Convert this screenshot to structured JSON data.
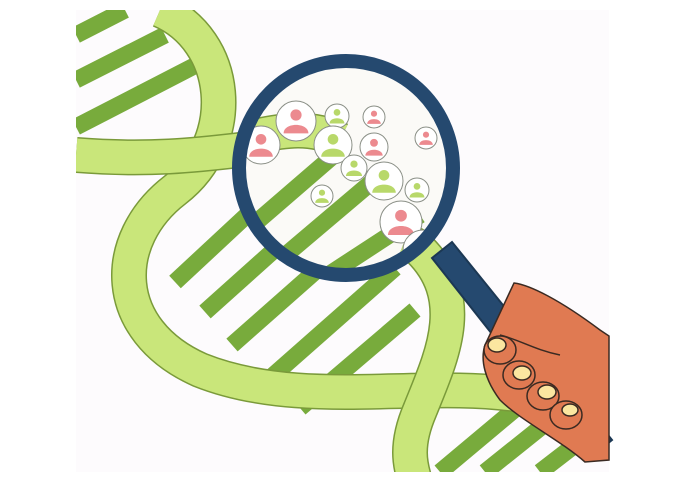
{
  "illustration": {
    "subject": "dna-helix-with-magnifying-glass",
    "colors": {
      "background": "#ffffff",
      "panel": "#fdfbfd",
      "strand_light": "#c9e67a",
      "strand_outline": "#7a9a3a",
      "rung_dark": "#78ab3c",
      "person_green": "#b8d86a",
      "person_pink": "#ec8a8f",
      "person_circle": "#ffffff",
      "lens_ring": "#25496f",
      "lens_glass": "#fbfaf7",
      "hand_skin": "#e07a52",
      "fingernail": "#fbe6a0",
      "outline": "#2f3b2a"
    },
    "icons": [
      "dna-helix-icon",
      "magnifying-glass-icon",
      "hand-icon",
      "person-icon"
    ]
  }
}
